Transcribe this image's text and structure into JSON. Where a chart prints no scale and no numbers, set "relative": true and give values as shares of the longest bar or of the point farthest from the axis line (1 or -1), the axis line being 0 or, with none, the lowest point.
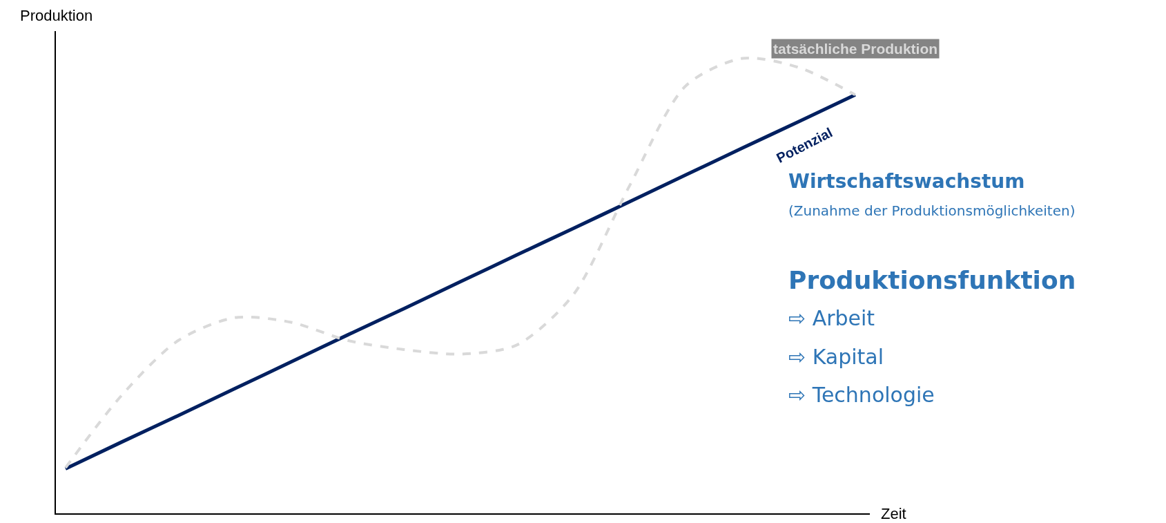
{
  "chart_data": {
    "type": "line",
    "relative": true,
    "xlabel": "Zeit",
    "ylabel": "Produktion",
    "categories": [
      null,
      null,
      null,
      null,
      null,
      null,
      null,
      null,
      null,
      null,
      null,
      null,
      null,
      null,
      null
    ],
    "series": [
      {
        "name": "Potenzial",
        "color": "#002060",
        "line_style": "solid",
        "values": [
          0.098,
          0.157,
          0.215,
          0.274,
          0.333,
          0.392,
          0.45,
          0.509,
          0.568,
          0.626,
          0.685,
          0.744,
          0.803,
          0.861,
          0.92
        ]
      },
      {
        "name": "tatsächliche Produktion",
        "color": "#d9d9d9",
        "line_style": "dashed",
        "values": [
          0.1,
          0.26,
          0.38,
          0.43,
          0.42,
          0.38,
          0.36,
          0.35,
          0.37,
          0.48,
          0.72,
          0.94,
          1.0,
          0.98,
          0.92
        ]
      }
    ],
    "annotations": [
      "Wirtschaftswachstum",
      "(Zunahme der Produktionsmöglichkeiten)",
      "Produktionsfunktion",
      "⇨ Arbeit",
      "⇨ Kapital",
      "⇨ Technologie"
    ],
    "legend": false,
    "marker": "none"
  }
}
